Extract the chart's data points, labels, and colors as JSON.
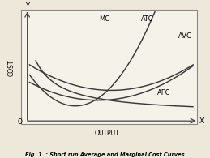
{
  "title": "Fig. 1  : Short run Average and Marginal Cost Curves",
  "ylabel": "COST",
  "xlabel": "OUTPUT",
  "x_axis_label": "X",
  "y_axis_label": "Y",
  "origin_label": "O",
  "curve_color": "#3a3a3a",
  "background_color": "#ede8da",
  "box_facecolor": "#f5f2ea",
  "box_edgecolor": "#888888",
  "label_MC": [
    0.495,
    0.865
  ],
  "label_ATC": [
    0.7,
    0.865
  ],
  "label_AVC": [
    0.88,
    0.745
  ],
  "label_AFC": [
    0.78,
    0.35
  ],
  "xlim": [
    0,
    1
  ],
  "ylim": [
    0,
    1
  ]
}
